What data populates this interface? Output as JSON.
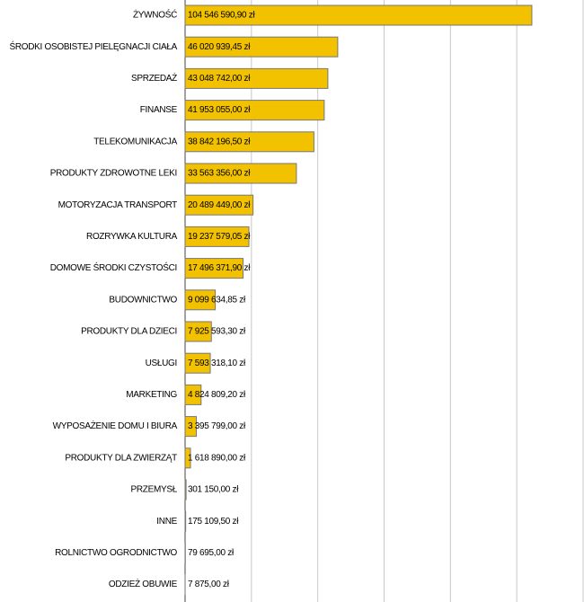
{
  "chart_data": {
    "type": "bar",
    "orientation": "horizontal",
    "categories": [
      "ŻYWNOŚĆ",
      "ŚRODKI OSOBISTEJ PIELĘGNACJI CIAŁA",
      "SPRZEDAŻ",
      "FINANSE",
      "TELEKOMUNIKACJA",
      "PRODUKTY ZDROWOTNE LEKI",
      "MOTORYZACJA TRANSPORT",
      "ROZRYWKA KULTURA",
      "DOMOWE ŚRODKI CZYSTOŚCI",
      "BUDOWNICTWO",
      "PRODUKTY DLA DZIECI",
      "USŁUGI",
      "MARKETING",
      "WYPOSAŻENIE DOMU I BIURA",
      "PRODUKTY DLA ZWIERZĄT",
      "PRZEMYSŁ",
      "INNE",
      "ROLNICTWO OGRODNICTWO",
      "ODZIEŻ OBUWIE"
    ],
    "values": [
      104546590.9,
      46020939.45,
      43048742.0,
      41953055.0,
      38842196.5,
      33563356.0,
      20489449.0,
      19237579.05,
      17496371.9,
      9099634.85,
      7925593.3,
      7593318.1,
      4824809.2,
      3395799.0,
      1618890.0,
      301150.0,
      175109.5,
      79695.0,
      7875.0
    ],
    "value_labels": [
      "104 546 590,90 zł",
      "46 020 939,45 zł",
      "43 048 742,00 zł",
      "41 953 055,00 zł",
      "38 842 196,50 zł",
      "33 563 356,00 zł",
      "20 489 449,00 zł",
      "19 237 579,05 zł",
      "17 496 371,90 zł",
      "9 099 634,85 zł",
      "7 925 593,30 zł",
      "7 593 318,10 zł",
      "4 824 809,20 zł",
      "3 395 799,00 zł",
      "1 618 890,00 zł",
      "301 150,00 zł",
      "175 109,50 zł",
      "79 695,00 zł",
      "7 875,00 zł"
    ],
    "color": "#f2c200",
    "xlim": [
      0,
      120000000
    ],
    "xticks": [
      0,
      20000000,
      40000000,
      60000000,
      80000000,
      100000000,
      120000000
    ],
    "grid": true
  }
}
